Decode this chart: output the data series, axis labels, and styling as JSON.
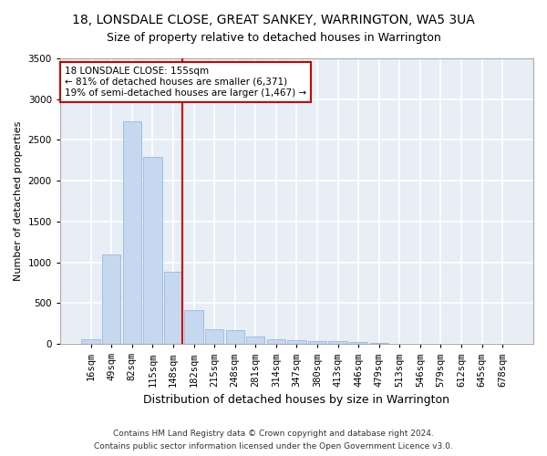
{
  "title_line1": "18, LONSDALE CLOSE, GREAT SANKEY, WARRINGTON, WA5 3UA",
  "title_line2": "Size of property relative to detached houses in Warrington",
  "xlabel": "Distribution of detached houses by size in Warrington",
  "ylabel": "Number of detached properties",
  "footnote1": "Contains HM Land Registry data © Crown copyright and database right 2024.",
  "footnote2": "Contains public sector information licensed under the Open Government Licence v3.0.",
  "categories": [
    "16sqm",
    "49sqm",
    "82sqm",
    "115sqm",
    "148sqm",
    "182sqm",
    "215sqm",
    "248sqm",
    "281sqm",
    "314sqm",
    "347sqm",
    "380sqm",
    "413sqm",
    "446sqm",
    "479sqm",
    "513sqm",
    "546sqm",
    "579sqm",
    "612sqm",
    "645sqm",
    "678sqm"
  ],
  "values": [
    55,
    1100,
    2730,
    2290,
    880,
    420,
    175,
    165,
    90,
    60,
    50,
    40,
    30,
    20,
    10,
    5,
    5,
    5,
    3,
    2,
    2
  ],
  "bar_color": "#c5d8f0",
  "bar_edge_color": "#8ab0d8",
  "vline_x_index": 4,
  "vline_color": "#cc0000",
  "annotation_line1": "18 LONSDALE CLOSE: 155sqm",
  "annotation_line2": "← 81% of detached houses are smaller (6,371)",
  "annotation_line3": "19% of semi-detached houses are larger (1,467) →",
  "annotation_color": "#cc0000",
  "bg_color": "#e8eef5",
  "fig_bg_color": "#ffffff",
  "grid_color": "#ffffff",
  "ylim": [
    0,
    3500
  ],
  "yticks": [
    0,
    500,
    1000,
    1500,
    2000,
    2500,
    3000,
    3500
  ],
  "title_fontsize": 10,
  "subtitle_fontsize": 9,
  "ylabel_fontsize": 8,
  "xlabel_fontsize": 9,
  "footnote_fontsize": 6.5,
  "tick_fontsize": 7.5
}
